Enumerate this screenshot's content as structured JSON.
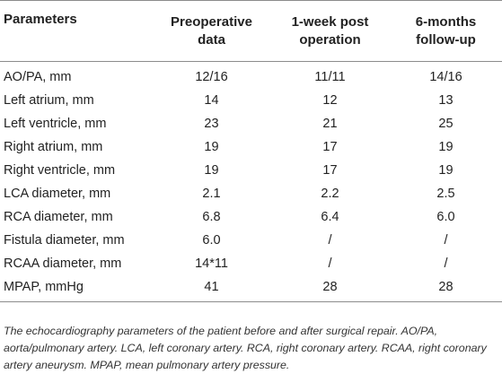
{
  "table": {
    "headers": [
      "Parameters",
      "Preoperative\ndata",
      "1-week post\noperation",
      "6-months\nfollow-up"
    ],
    "rows": [
      [
        "AO/PA, mm",
        "12/16",
        "11/11",
        "14/16"
      ],
      [
        "Left atrium, mm",
        "14",
        "12",
        "13"
      ],
      [
        "Left ventricle, mm",
        "23",
        "21",
        "25"
      ],
      [
        "Right atrium, mm",
        "19",
        "17",
        "19"
      ],
      [
        "Right ventricle, mm",
        "19",
        "17",
        "19"
      ],
      [
        "LCA diameter, mm",
        "2.1",
        "2.2",
        "2.5"
      ],
      [
        "RCA diameter, mm",
        "6.8",
        "6.4",
        "6.0"
      ],
      [
        "Fistula diameter, mm",
        "6.0",
        "/",
        "/"
      ],
      [
        "RCAA diameter, mm",
        "14*11",
        "/",
        "/"
      ],
      [
        "MPAP, mmHg",
        "41",
        "28",
        "28"
      ]
    ]
  },
  "caption": "The echocardiography parameters of the patient before and after surgical repair. AO/PA, aorta/pulmonary artery. LCA, left coronary artery. RCA, right coronary artery. RCAA, right coronary artery aneurysm. MPAP, mean pulmonary artery pressure."
}
